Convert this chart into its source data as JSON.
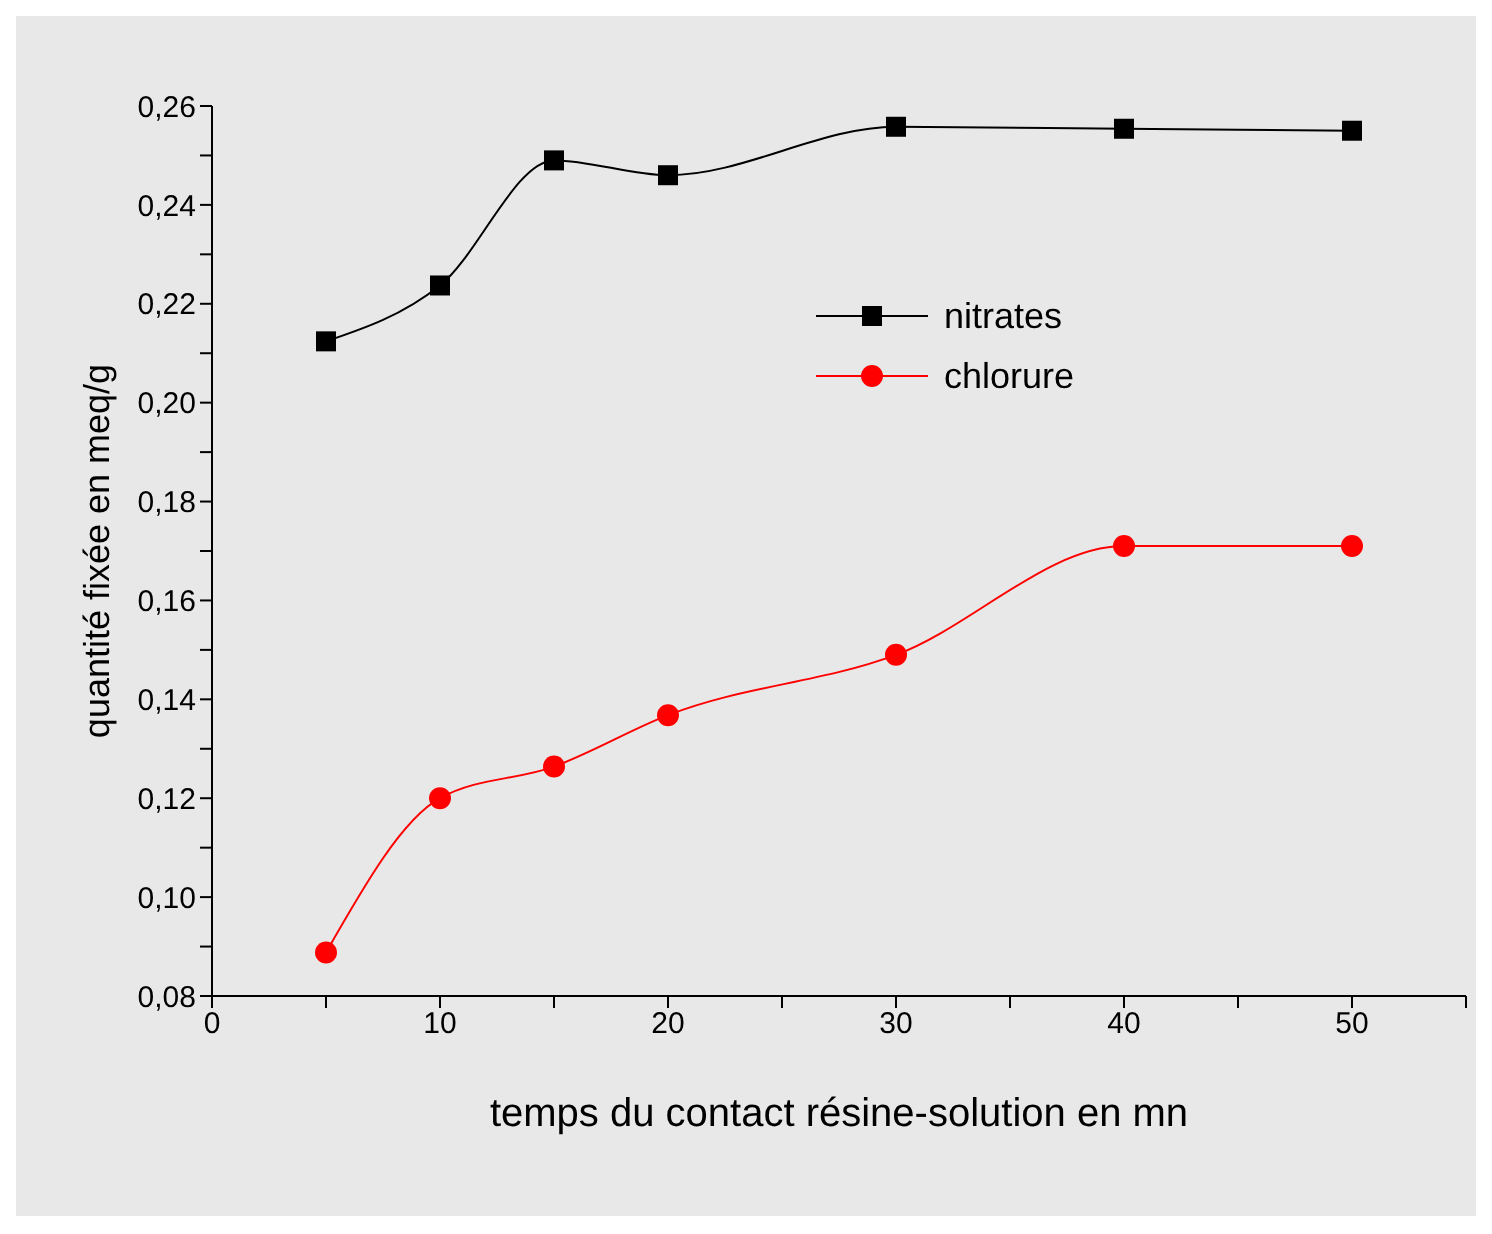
{
  "chart_data": {
    "type": "line",
    "xlabel": "temps du contact résine-solution en mn",
    "ylabel": "quantité fixée en meq/g",
    "x": [
      5,
      10,
      15,
      20,
      30,
      40,
      50
    ],
    "series": [
      {
        "name": "nitrates",
        "color": "#000000",
        "marker": "square",
        "values": [
          0.2124,
          0.2237,
          0.249,
          0.246,
          0.2558,
          0.2554,
          0.255
        ]
      },
      {
        "name": "chlorure",
        "color": "#ff0000",
        "marker": "circle",
        "values": [
          0.0888,
          0.12,
          0.1264,
          0.1368,
          0.149,
          0.171,
          0.171
        ]
      }
    ],
    "xlim": [
      0,
      55
    ],
    "xticks": [
      0,
      {
        "value": 5,
        "label": null
      },
      10,
      {
        "value": 15,
        "label": null
      },
      20,
      {
        "value": 25,
        "label": null
      },
      30,
      {
        "value": 35,
        "label": null
      },
      40,
      {
        "value": 45,
        "label": null
      },
      50,
      {
        "value": 55,
        "label": null
      }
    ],
    "ylim": [
      0.08,
      0.26
    ],
    "yticks": [
      {
        "value": 0.08,
        "label": "0,08"
      },
      {
        "value": 0.09,
        "label": null
      },
      {
        "value": 0.1,
        "label": "0,10"
      },
      {
        "value": 0.11,
        "label": null
      },
      {
        "value": 0.12,
        "label": "0,12"
      },
      {
        "value": 0.13,
        "label": null
      },
      {
        "value": 0.14,
        "label": "0,14"
      },
      {
        "value": 0.15,
        "label": null
      },
      {
        "value": 0.16,
        "label": "0,16"
      },
      {
        "value": 0.17,
        "label": null
      },
      {
        "value": 0.18,
        "label": "0,18"
      },
      {
        "value": 0.19,
        "label": null
      },
      {
        "value": 0.2,
        "label": "0,20"
      },
      {
        "value": 0.21,
        "label": null
      },
      {
        "value": 0.22,
        "label": "0,22"
      },
      {
        "value": 0.23,
        "label": null
      },
      {
        "value": 0.24,
        "label": "0,24"
      },
      {
        "value": 0.25,
        "label": null
      },
      {
        "value": 0.26,
        "label": "0,26"
      }
    ],
    "grid": false,
    "legend": "top right",
    "line_style": "solid"
  }
}
